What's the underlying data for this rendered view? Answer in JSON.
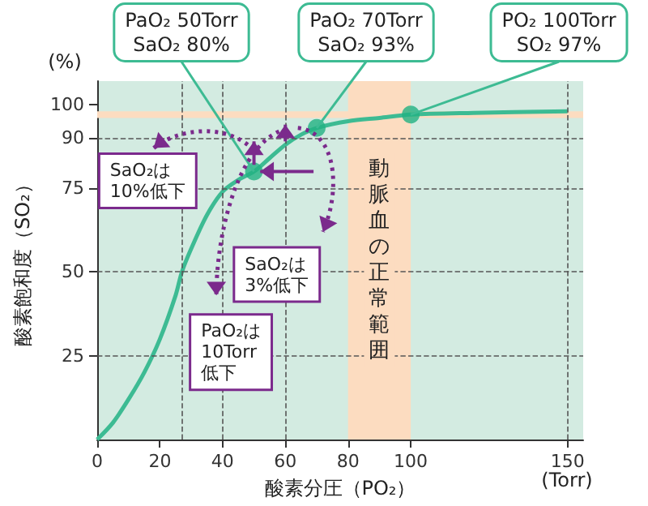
{
  "chart_data": {
    "type": "line",
    "xlabel": "酸素分圧（PO₂）",
    "ylabel": "酸素飽和度（SO₂）",
    "xlim": [
      0,
      155
    ],
    "xticks": [
      0,
      20,
      40,
      60,
      80,
      100,
      150
    ],
    "ylim": [
      0,
      107
    ],
    "yticks": [
      25,
      50,
      75,
      90,
      100
    ],
    "marker": "none",
    "series": [
      {
        "color": "#3dbb93",
        "x": [
          0,
          5,
          10,
          15,
          20,
          25,
          27,
          30,
          35,
          40,
          45,
          50,
          55,
          60,
          65,
          70,
          80,
          90,
          100,
          120,
          150
        ],
        "values": [
          0,
          5,
          12,
          20,
          30,
          43,
          50,
          57,
          67,
          74,
          77.5,
          80,
          84,
          88,
          91,
          93,
          95,
          96,
          97,
          97.5,
          98
        ]
      },
      {
        "type": "scatter",
        "marker": "circle",
        "color": "#22b282",
        "x": [
          50,
          70,
          100
        ],
        "values": [
          80,
          93,
          97
        ]
      }
    ],
    "bands": [
      {
        "axis": "x",
        "from": 80,
        "to": 100,
        "label": "動脈血の正常範囲",
        "color": "#fcdcc0"
      },
      {
        "axis": "y",
        "from": 96,
        "to": 98,
        "color": "#fcdcc0"
      }
    ],
    "ref_lines": [
      {
        "axis": "x",
        "value": 27,
        "color": "#555555",
        "line_style": "dashed"
      },
      {
        "axis": "x",
        "value": 40,
        "color": "#555555",
        "line_style": "dashed"
      },
      {
        "axis": "x",
        "value": 60,
        "color": "#555555",
        "line_style": "dashed"
      },
      {
        "axis": "x",
        "value": 150,
        "color": "#555555",
        "line_style": "dashed"
      },
      {
        "axis": "y",
        "value": 25,
        "color": "#555555",
        "line_style": "dashed"
      },
      {
        "axis": "y",
        "value": 50,
        "color": "#555555",
        "line_style": "dashed"
      },
      {
        "axis": "y",
        "value": 75,
        "color": "#555555",
        "line_style": "dashed"
      },
      {
        "axis": "y",
        "value": 90,
        "color": "#555555",
        "line_style": "dashed"
      }
    ],
    "annotations": [
      {
        "text": "PaO₂ 50Torr\nSaO₂ 80%",
        "x": 50,
        "y": 80
      },
      {
        "text": "PaO₂ 70Torr\nSaO₂ 93%",
        "x": 70,
        "y": 93
      },
      {
        "text": "PO₂ 100Torr\nSO₂ 97%",
        "x": 100,
        "y": 97
      },
      "SaO₂は\n10%低下",
      "SaO₂は\n3%低下",
      "PaO₂は\n10Torr\n低下",
      "(%)",
      "(Torr)"
    ]
  }
}
